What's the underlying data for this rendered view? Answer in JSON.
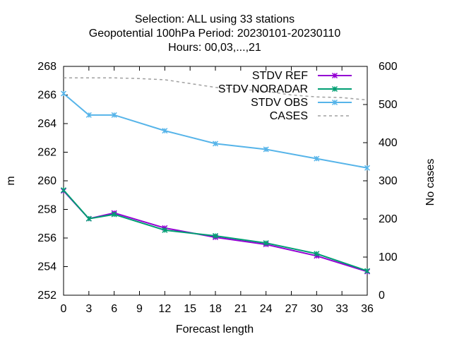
{
  "chart_data": {
    "type": "line",
    "title_lines": [
      "Selection: ALL using    33 stations",
      "Geopotential 100hPa   Period: 20230101-20230110",
      "Hours:  00,03,...,21"
    ],
    "xlabel": "Forecast length",
    "ylabel": "m",
    "y2label": "No cases",
    "xlim": [
      0,
      36
    ],
    "ylim": [
      252,
      268
    ],
    "y2lim": [
      0,
      600
    ],
    "xticks": [
      0,
      3,
      6,
      9,
      12,
      15,
      18,
      21,
      24,
      27,
      30,
      33,
      36
    ],
    "yticks": [
      252,
      254,
      256,
      258,
      260,
      262,
      264,
      266,
      268
    ],
    "y2ticks": [
      0,
      100,
      200,
      300,
      400,
      500,
      600
    ],
    "grid": false,
    "legend_position": "top-right",
    "series": [
      {
        "name": "STDV REF",
        "color": "#9400d3",
        "axis": "y",
        "marker": "x-star",
        "x": [
          0,
          3,
          6,
          12,
          18,
          24,
          30,
          36
        ],
        "values": [
          259.3,
          257.35,
          257.75,
          256.7,
          256.05,
          255.55,
          254.75,
          253.65
        ]
      },
      {
        "name": "STDV NORADAR",
        "color": "#009e73",
        "axis": "y",
        "marker": "x-star",
        "x": [
          0,
          3,
          6,
          12,
          18,
          24,
          30,
          36
        ],
        "values": [
          259.35,
          257.35,
          257.65,
          256.55,
          256.15,
          255.65,
          254.9,
          253.7
        ]
      },
      {
        "name": "STDV OBS",
        "color": "#56b4e9",
        "axis": "y",
        "marker": "x-star",
        "x": [
          0,
          3,
          6,
          12,
          18,
          24,
          30,
          36
        ],
        "values": [
          266.1,
          264.6,
          264.6,
          263.5,
          262.6,
          262.2,
          261.55,
          260.9
        ]
      },
      {
        "name": "CASES",
        "color": "#a0a0a0",
        "axis": "y2",
        "dashed": true,
        "x": [
          0,
          3,
          6,
          9,
          12,
          15,
          18,
          21,
          24,
          27,
          30,
          33,
          36
        ],
        "values": [
          570,
          570,
          570,
          568,
          565,
          555,
          545,
          540,
          535,
          525,
          520,
          518,
          512
        ]
      }
    ]
  }
}
